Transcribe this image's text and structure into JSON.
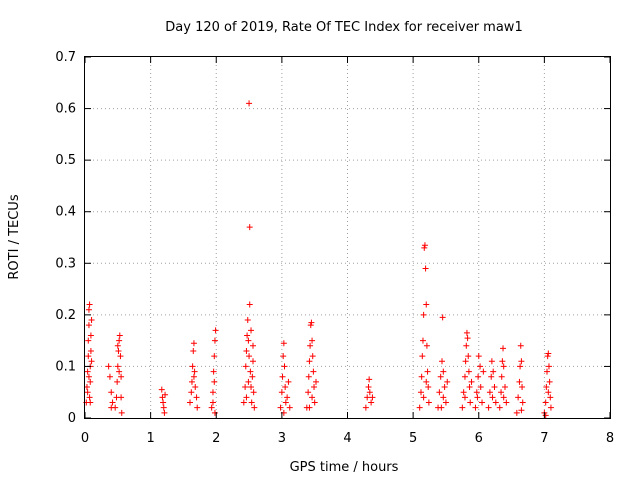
{
  "chart_data": {
    "type": "scatter",
    "title": "Day 120 of 2019, Rate Of TEC Index for receiver maw1",
    "xlabel": "GPS time / hours",
    "ylabel": "ROTI / TECUs",
    "xlim": [
      0,
      8
    ],
    "ylim": [
      0,
      0.7
    ],
    "xticks": [
      "0",
      "1",
      "2",
      "3",
      "4",
      "5",
      "6",
      "7",
      "8"
    ],
    "yticks": [
      "0",
      "0.1",
      "0.2",
      "0.3",
      "0.4",
      "0.5",
      "0.6",
      "0.7"
    ],
    "grid": true,
    "marker": "+",
    "series": [
      {
        "name": "ROTI",
        "color": "#ff0000",
        "points": [
          [
            0.02,
            0.03
          ],
          [
            0.03,
            0.06
          ],
          [
            0.04,
            0.09
          ],
          [
            0.05,
            0.12
          ],
          [
            0.05,
            0.15
          ],
          [
            0.06,
            0.18
          ],
          [
            0.06,
            0.21
          ],
          [
            0.07,
            0.22
          ],
          [
            0.07,
            0.04
          ],
          [
            0.08,
            0.07
          ],
          [
            0.08,
            0.1
          ],
          [
            0.09,
            0.13
          ],
          [
            0.09,
            0.16
          ],
          [
            0.1,
            0.19
          ],
          [
            0.04,
            0.05
          ],
          [
            0.06,
            0.08
          ],
          [
            0.08,
            0.03
          ],
          [
            0.1,
            0.11
          ],
          [
            0.36,
            0.1
          ],
          [
            0.38,
            0.08
          ],
          [
            0.4,
            0.05
          ],
          [
            0.42,
            0.03
          ],
          [
            0.4,
            0.02
          ],
          [
            0.46,
            0.02
          ],
          [
            0.48,
            0.04
          ],
          [
            0.49,
            0.07
          ],
          [
            0.5,
            0.1
          ],
          [
            0.51,
            0.13
          ],
          [
            0.52,
            0.15
          ],
          [
            0.53,
            0.16
          ],
          [
            0.54,
            0.12
          ],
          [
            0.55,
            0.08
          ],
          [
            0.55,
            0.04
          ],
          [
            0.56,
            0.01
          ],
          [
            0.5,
            0.14
          ],
          [
            0.52,
            0.09
          ],
          [
            1.17,
            0.055
          ],
          [
            1.18,
            0.04
          ],
          [
            1.19,
            0.03
          ],
          [
            1.2,
            0.02
          ],
          [
            1.21,
            0.01
          ],
          [
            1.22,
            0.045
          ],
          [
            1.6,
            0.03
          ],
          [
            1.62,
            0.05
          ],
          [
            1.63,
            0.07
          ],
          [
            1.64,
            0.1
          ],
          [
            1.65,
            0.13
          ],
          [
            1.66,
            0.145
          ],
          [
            1.67,
            0.09
          ],
          [
            1.68,
            0.06
          ],
          [
            1.7,
            0.04
          ],
          [
            1.71,
            0.02
          ],
          [
            1.66,
            0.08
          ],
          [
            1.93,
            0.02
          ],
          [
            1.95,
            0.05
          ],
          [
            1.96,
            0.09
          ],
          [
            1.97,
            0.12
          ],
          [
            1.98,
            0.15
          ],
          [
            1.99,
            0.17
          ],
          [
            1.97,
            0.07
          ],
          [
            1.95,
            0.03
          ],
          [
            1.98,
            0.01
          ],
          [
            2.42,
            0.03
          ],
          [
            2.44,
            0.06
          ],
          [
            2.45,
            0.1
          ],
          [
            2.46,
            0.13
          ],
          [
            2.47,
            0.16
          ],
          [
            2.48,
            0.19
          ],
          [
            2.49,
            0.15
          ],
          [
            2.5,
            0.12
          ],
          [
            2.5,
            0.61
          ],
          [
            2.51,
            0.37
          ],
          [
            2.51,
            0.22
          ],
          [
            2.52,
            0.09
          ],
          [
            2.53,
            0.06
          ],
          [
            2.54,
            0.03
          ],
          [
            2.55,
            0.08
          ],
          [
            2.56,
            0.11
          ],
          [
            2.56,
            0.14
          ],
          [
            2.57,
            0.05
          ],
          [
            2.58,
            0.02
          ],
          [
            2.46,
            0.04
          ],
          [
            2.49,
            0.07
          ],
          [
            2.53,
            0.17
          ],
          [
            2.98,
            0.02
          ],
          [
            3.0,
            0.05
          ],
          [
            3.01,
            0.08
          ],
          [
            3.02,
            0.12
          ],
          [
            3.03,
            0.145
          ],
          [
            3.04,
            0.1
          ],
          [
            3.05,
            0.06
          ],
          [
            3.06,
            0.03
          ],
          [
            3.08,
            0.04
          ],
          [
            3.1,
            0.07
          ],
          [
            3.12,
            0.02
          ],
          [
            3.03,
            0.01
          ],
          [
            3.38,
            0.02
          ],
          [
            3.4,
            0.05
          ],
          [
            3.41,
            0.08
          ],
          [
            3.42,
            0.11
          ],
          [
            3.43,
            0.14
          ],
          [
            3.44,
            0.18
          ],
          [
            3.45,
            0.185
          ],
          [
            3.46,
            0.15
          ],
          [
            3.47,
            0.12
          ],
          [
            3.48,
            0.09
          ],
          [
            3.49,
            0.06
          ],
          [
            3.5,
            0.03
          ],
          [
            3.52,
            0.07
          ],
          [
            3.46,
            0.04
          ],
          [
            3.42,
            0.02
          ],
          [
            4.28,
            0.02
          ],
          [
            4.3,
            0.04
          ],
          [
            4.32,
            0.06
          ],
          [
            4.33,
            0.075
          ],
          [
            4.34,
            0.05
          ],
          [
            4.36,
            0.03
          ],
          [
            4.38,
            0.04
          ],
          [
            5.1,
            0.02
          ],
          [
            5.12,
            0.05
          ],
          [
            5.13,
            0.08
          ],
          [
            5.14,
            0.12
          ],
          [
            5.15,
            0.15
          ],
          [
            5.16,
            0.2
          ],
          [
            5.17,
            0.33
          ],
          [
            5.18,
            0.335
          ],
          [
            5.19,
            0.29
          ],
          [
            5.2,
            0.22
          ],
          [
            5.21,
            0.14
          ],
          [
            5.22,
            0.09
          ],
          [
            5.23,
            0.06
          ],
          [
            5.24,
            0.03
          ],
          [
            5.16,
            0.04
          ],
          [
            5.2,
            0.07
          ],
          [
            5.38,
            0.02
          ],
          [
            5.4,
            0.05
          ],
          [
            5.42,
            0.08
          ],
          [
            5.44,
            0.11
          ],
          [
            5.45,
            0.195
          ],
          [
            5.46,
            0.09
          ],
          [
            5.48,
            0.06
          ],
          [
            5.5,
            0.03
          ],
          [
            5.52,
            0.07
          ],
          [
            5.46,
            0.04
          ],
          [
            5.43,
            0.02
          ],
          [
            5.75,
            0.02
          ],
          [
            5.77,
            0.05
          ],
          [
            5.79,
            0.08
          ],
          [
            5.8,
            0.11
          ],
          [
            5.81,
            0.14
          ],
          [
            5.82,
            0.165
          ],
          [
            5.83,
            0.155
          ],
          [
            5.84,
            0.12
          ],
          [
            5.85,
            0.09
          ],
          [
            5.86,
            0.06
          ],
          [
            5.87,
            0.03
          ],
          [
            5.89,
            0.07
          ],
          [
            5.79,
            0.04
          ],
          [
            5.95,
            0.02
          ],
          [
            5.97,
            0.05
          ],
          [
            5.99,
            0.08
          ],
          [
            6.0,
            0.12
          ],
          [
            6.02,
            0.1
          ],
          [
            6.03,
            0.06
          ],
          [
            6.05,
            0.03
          ],
          [
            6.07,
            0.09
          ],
          [
            5.98,
            0.04
          ],
          [
            6.15,
            0.02
          ],
          [
            6.17,
            0.05
          ],
          [
            6.19,
            0.08
          ],
          [
            6.2,
            0.11
          ],
          [
            6.22,
            0.09
          ],
          [
            6.24,
            0.06
          ],
          [
            6.26,
            0.03
          ],
          [
            6.21,
            0.04
          ],
          [
            6.32,
            0.02
          ],
          [
            6.34,
            0.05
          ],
          [
            6.35,
            0.08
          ],
          [
            6.36,
            0.11
          ],
          [
            6.37,
            0.135
          ],
          [
            6.38,
            0.1
          ],
          [
            6.4,
            0.06
          ],
          [
            6.42,
            0.03
          ],
          [
            6.38,
            0.04
          ],
          [
            6.58,
            0.01
          ],
          [
            6.6,
            0.04
          ],
          [
            6.62,
            0.07
          ],
          [
            6.63,
            0.1
          ],
          [
            6.64,
            0.14
          ],
          [
            6.65,
            0.11
          ],
          [
            6.66,
            0.06
          ],
          [
            6.67,
            0.03
          ],
          [
            6.65,
            0.015
          ],
          [
            7.0,
            0.01
          ],
          [
            7.02,
            0.03
          ],
          [
            7.03,
            0.06
          ],
          [
            7.04,
            0.09
          ],
          [
            7.05,
            0.12
          ],
          [
            7.06,
            0.125
          ],
          [
            7.07,
            0.1
          ],
          [
            7.08,
            0.07
          ],
          [
            7.09,
            0.04
          ],
          [
            7.1,
            0.02
          ],
          [
            7.06,
            0.05
          ],
          [
            7.02,
            0.005
          ]
        ]
      }
    ]
  }
}
